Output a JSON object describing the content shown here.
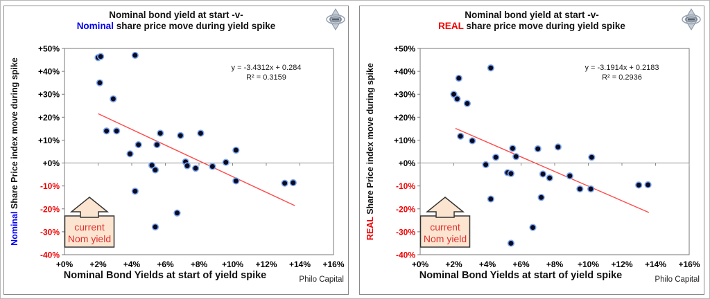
{
  "colors": {
    "nominal_highlight": "#0000EE",
    "real_highlight": "#EE0000",
    "trendline": "#FF4A4A",
    "marker_fill": "#0B0B20",
    "marker_stroke": "#7CA6F2",
    "negative_tick": "#EE0000",
    "annotation_bg": "#FBE5D0",
    "annotation_border": "#333333",
    "annotation_text": "#E03030",
    "axis_line": "#888888",
    "plot_border": "#777777"
  },
  "panels": [
    {
      "title_line1": "Nominal bond yield at start -v-",
      "title_highlight": "Nominal",
      "title_rest": " share price move during yield spike",
      "highlight_color": "#0000EE",
      "ylabel_highlight": "Nominal",
      "ylabel_rest": " Share Price index move during spike",
      "xlabel": "Nominal Bond Yields at start of yield spike",
      "footer": "Philo Capital",
      "annotation": {
        "line1": "current",
        "line2": "Nom yield"
      },
      "chart_data": {
        "type": "scatter",
        "title": "Nominal bond yield at start -v- Nominal share price move during yield spike",
        "xlabel": "Nominal Bond Yields at start of yield spike",
        "ylabel": "Nominal Share Price index move during spike",
        "x_units": "percent bond yield at start of spike",
        "y_units": "percent share price move",
        "xlim": [
          0,
          16
        ],
        "ylim": [
          -40,
          50
        ],
        "grid": "zero-line-only",
        "legend": "none",
        "x_tick_values": [
          0,
          2,
          4,
          6,
          8,
          10,
          12,
          14,
          16
        ],
        "x_tick_labels": [
          "+0%",
          "+2%",
          "+4%",
          "+6%",
          "+8%",
          "+10%",
          "+12%",
          "+14%",
          "+16%"
        ],
        "y_tick_values": [
          50,
          40,
          30,
          20,
          10,
          0,
          -10,
          -20,
          -30,
          -40
        ],
        "y_tick_labels": [
          "+50%",
          "+40%",
          "+30%",
          "+20%",
          "+10%",
          "+0%",
          "-10%",
          "-20%",
          "-30%",
          "-40%"
        ],
        "points": [
          [
            2.0,
            46.0
          ],
          [
            2.15,
            46.5
          ],
          [
            4.2,
            47.0
          ],
          [
            2.1,
            35.0
          ],
          [
            2.9,
            28.0
          ],
          [
            2.5,
            14.0
          ],
          [
            3.1,
            14.0
          ],
          [
            3.9,
            4.0
          ],
          [
            4.4,
            8.0
          ],
          [
            5.5,
            8.0
          ],
          [
            5.7,
            13.0
          ],
          [
            6.9,
            12.0
          ],
          [
            8.1,
            13.0
          ],
          [
            5.2,
            -1.0
          ],
          [
            5.4,
            -3.0
          ],
          [
            7.2,
            0.5
          ],
          [
            7.3,
            -1.2
          ],
          [
            7.8,
            -2.3
          ],
          [
            8.8,
            -1.5
          ],
          [
            9.6,
            0.3
          ],
          [
            10.2,
            5.6
          ],
          [
            10.2,
            -7.8
          ],
          [
            13.1,
            -8.8
          ],
          [
            13.6,
            -8.6
          ],
          [
            4.2,
            -12.3
          ],
          [
            6.7,
            -21.8
          ],
          [
            5.4,
            -27.9
          ]
        ],
        "trendline": {
          "slope": -3.4312,
          "intercept": 0.284,
          "x_start": 2.0,
          "x_end": 13.7,
          "equation": "y = -3.4312x + 0.284",
          "r2": "R² = 0.3159"
        }
      }
    },
    {
      "title_line1": "Nominal bond yield at start -v-",
      "title_highlight": "REAL",
      "title_rest": " share price move during yield spike",
      "highlight_color": "#EE0000",
      "ylabel_highlight": "REAL",
      "ylabel_rest": " Share Price index move during spike",
      "xlabel": "Nominal Bond Yields at start of yield spike",
      "footer": "Philo Capital",
      "annotation": {
        "line1": "current",
        "line2": "Nom yield"
      },
      "chart_data": {
        "type": "scatter",
        "title": "Nominal bond yield at start -v- REAL share price move during yield spike",
        "xlabel": "Nominal Bond Yields at start of yield spike",
        "ylabel": "REAL Share Price index move during spike",
        "x_units": "percent bond yield at start of spike",
        "y_units": "percent real share price move",
        "xlim": [
          0,
          16
        ],
        "ylim": [
          -40,
          50
        ],
        "grid": "zero-line-only",
        "legend": "none",
        "x_tick_values": [
          0,
          2,
          4,
          6,
          8,
          10,
          12,
          14,
          16
        ],
        "x_tick_labels": [
          "+0%",
          "+2%",
          "+4%",
          "+6%",
          "+8%",
          "+10%",
          "+12%",
          "+14%",
          "+16%"
        ],
        "y_tick_values": [
          50,
          40,
          30,
          20,
          10,
          0,
          -10,
          -20,
          -30,
          -40
        ],
        "y_tick_labels": [
          "+50%",
          "+40%",
          "+30%",
          "+20%",
          "+10%",
          "+0%",
          "-10%",
          "-20%",
          "-30%",
          "-40%"
        ],
        "points": [
          [
            2.0,
            30.0
          ],
          [
            2.2,
            28.0
          ],
          [
            2.3,
            37.0
          ],
          [
            2.8,
            26.0
          ],
          [
            4.2,
            41.5
          ],
          [
            2.4,
            11.7
          ],
          [
            3.1,
            9.7
          ],
          [
            3.9,
            -0.7
          ],
          [
            4.5,
            2.5
          ],
          [
            5.5,
            6.4
          ],
          [
            5.7,
            2.8
          ],
          [
            7.0,
            6.2
          ],
          [
            8.2,
            7.0
          ],
          [
            5.2,
            -4.2
          ],
          [
            5.4,
            -4.6
          ],
          [
            7.3,
            -4.8
          ],
          [
            7.7,
            -6.5
          ],
          [
            8.9,
            -5.6
          ],
          [
            9.5,
            -11.3
          ],
          [
            10.15,
            -11.3
          ],
          [
            10.2,
            2.5
          ],
          [
            13.0,
            -9.6
          ],
          [
            13.55,
            -9.5
          ],
          [
            4.2,
            -15.7
          ],
          [
            7.2,
            -15.0
          ],
          [
            6.7,
            -28.1
          ],
          [
            5.4,
            -35.0
          ]
        ],
        "trendline": {
          "slope": -3.1914,
          "intercept": 0.2183,
          "x_start": 2.1,
          "x_end": 13.6,
          "equation": "y = -3.1914x + 0.2183",
          "r2": "R² = 0.2936"
        }
      }
    }
  ]
}
